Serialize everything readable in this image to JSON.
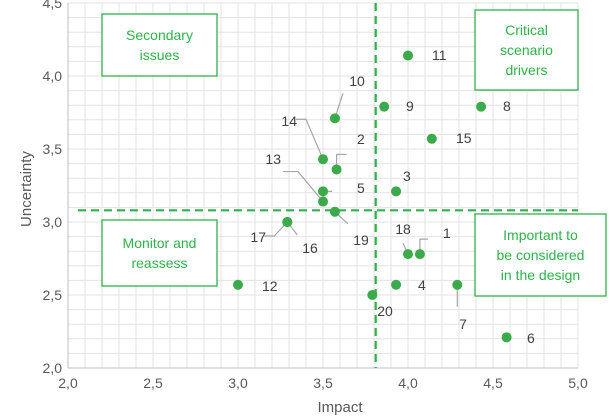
{
  "chart_data": {
    "type": "scatter",
    "xlabel": "Impact",
    "ylabel": "Uncertainty",
    "xlim": [
      2.0,
      5.0
    ],
    "ylim": [
      2.0,
      4.5
    ],
    "xticks": [
      "2,0",
      "2,5",
      "3,0",
      "3,5",
      "4,0",
      "4,5",
      "5,0"
    ],
    "yticks": [
      "2,0",
      "2,5",
      "3,0",
      "3,5",
      "4,0",
      "4,5"
    ],
    "grid": true,
    "colors": {
      "point": "#3aaa4a",
      "threshold": "#2db34a",
      "box_border": "#2db34a",
      "box_text": "#2db34a",
      "grid": "#e3e3e3",
      "leader": "#a6a6a6"
    },
    "thresholds": {
      "x": 3.81,
      "y": 3.08
    },
    "points": [
      {
        "label": "1",
        "x": 4.07,
        "y": 2.78
      },
      {
        "label": "2",
        "x": 3.58,
        "y": 3.36
      },
      {
        "label": "3",
        "x": 3.93,
        "y": 3.21
      },
      {
        "label": "4",
        "x": 3.93,
        "y": 2.57
      },
      {
        "label": "5",
        "x": 3.5,
        "y": 3.21
      },
      {
        "label": "6",
        "x": 4.58,
        "y": 2.21
      },
      {
        "label": "7",
        "x": 4.29,
        "y": 2.57
      },
      {
        "label": "8",
        "x": 4.43,
        "y": 3.79
      },
      {
        "label": "9",
        "x": 3.86,
        "y": 3.79
      },
      {
        "label": "10",
        "x": 3.57,
        "y": 3.71
      },
      {
        "label": "11",
        "x": 4.0,
        "y": 4.14
      },
      {
        "label": "12",
        "x": 3.0,
        "y": 2.57
      },
      {
        "label": "13",
        "x": 3.5,
        "y": 3.14
      },
      {
        "label": "14",
        "x": 3.5,
        "y": 3.43
      },
      {
        "label": "15",
        "x": 4.14,
        "y": 3.57
      },
      {
        "label": "16",
        "x": 3.29,
        "y": 3.0
      },
      {
        "label": "17",
        "x": 3.29,
        "y": 3.0
      },
      {
        "label": "18",
        "x": 4.0,
        "y": 2.78
      },
      {
        "label": "19",
        "x": 3.57,
        "y": 3.07
      },
      {
        "label": "20",
        "x": 3.79,
        "y": 2.5
      }
    ],
    "quadrant_boxes": [
      {
        "position": "top-left",
        "lines": [
          "Secondary",
          "issues"
        ]
      },
      {
        "position": "top-right",
        "lines": [
          "Critical",
          "scenario",
          "drivers"
        ]
      },
      {
        "position": "bottom-left",
        "lines": [
          "Monitor and",
          "reassess"
        ]
      },
      {
        "position": "bottom-right",
        "lines": [
          "Important to",
          "be considered",
          "in the design"
        ]
      }
    ]
  }
}
